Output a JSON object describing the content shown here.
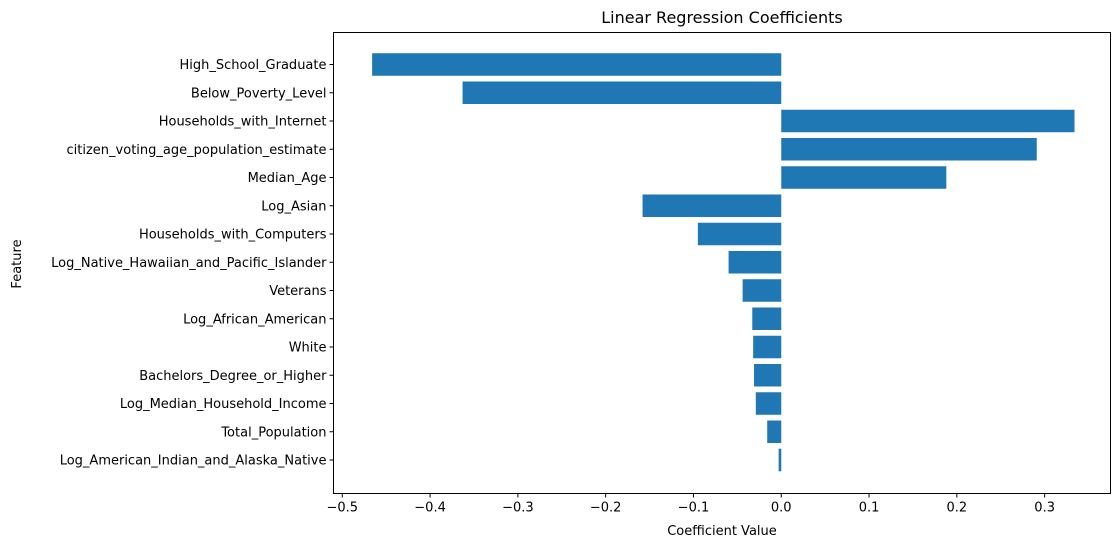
{
  "chart_data": {
    "type": "bar",
    "orientation": "horizontal",
    "title": "Linear Regression Coefficients",
    "xlabel": "Coefficient Value",
    "ylabel": "Feature",
    "categories": [
      "High_School_Graduate",
      "Below_Poverty_Level",
      "Households_with_Internet",
      "citizen_voting_age_population_estimate",
      "Median_Age",
      "Log_Asian",
      "Households_with_Computers",
      "Log_Native_Hawaiian_and_Pacific_Islander",
      "Veterans",
      "Log_African_American",
      "White",
      "Bachelors_Degree_or_Higher",
      "Log_Median_Household_Income",
      "Total_Population",
      "Log_American_Indian_and_Alaska_Native"
    ],
    "values": [
      -0.466,
      -0.363,
      0.334,
      0.291,
      0.188,
      -0.158,
      -0.095,
      -0.06,
      -0.044,
      -0.033,
      -0.032,
      -0.031,
      -0.029,
      -0.016,
      -0.003
    ],
    "xlim": [
      -0.51,
      0.375
    ],
    "xticks": [
      -0.5,
      -0.4,
      -0.3,
      -0.2,
      -0.1,
      0.0,
      0.1,
      0.2,
      0.3
    ],
    "xtick_labels": [
      "−0.5",
      "−0.4",
      "−0.3",
      "−0.2",
      "−0.1",
      "0.0",
      "0.1",
      "0.2",
      "0.3"
    ],
    "grid": false,
    "legend": "none",
    "bar_color": "#1f77b4"
  }
}
